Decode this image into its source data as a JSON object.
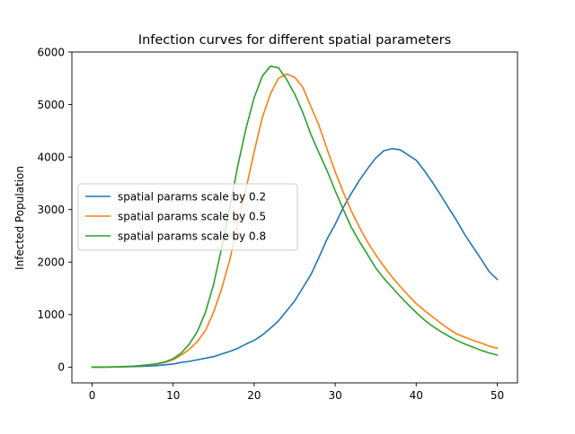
{
  "chart_data": {
    "type": "line",
    "title": "Infection curves for different spatial parameters",
    "xlabel": "",
    "ylabel": "Infected Population",
    "xlim": [
      -2.5,
      52.5
    ],
    "ylim": [
      -300,
      6000
    ],
    "xticks": [
      0,
      10,
      20,
      30,
      40,
      50
    ],
    "yticks": [
      0,
      1000,
      2000,
      3000,
      4000,
      5000,
      6000
    ],
    "grid": false,
    "legend_position": "center-left",
    "series": [
      {
        "name": "spatial params scale by 0.2",
        "color": "#1f77b4",
        "x": [
          0,
          1,
          2,
          3,
          4,
          5,
          6,
          7,
          8,
          9,
          10,
          11,
          12,
          13,
          14,
          15,
          16,
          17,
          18,
          19,
          20,
          21,
          22,
          23,
          24,
          25,
          26,
          27,
          28,
          29,
          30,
          31,
          32,
          33,
          34,
          35,
          36,
          37,
          38,
          39,
          40,
          41,
          42,
          43,
          44,
          45,
          46,
          47,
          48,
          49,
          50
        ],
        "y": [
          0,
          0,
          2,
          4,
          6,
          10,
          15,
          22,
          30,
          45,
          60,
          90,
          110,
          140,
          170,
          200,
          250,
          300,
          360,
          440,
          510,
          610,
          740,
          880,
          1070,
          1260,
          1510,
          1760,
          2090,
          2440,
          2720,
          3040,
          3310,
          3560,
          3780,
          3980,
          4120,
          4160,
          4140,
          4040,
          3940,
          3740,
          3520,
          3280,
          3030,
          2790,
          2520,
          2290,
          2060,
          1820,
          1670
        ]
      },
      {
        "name": "spatial params scale by 0.5",
        "color": "#ff7f0e",
        "x": [
          0,
          1,
          2,
          3,
          4,
          5,
          6,
          7,
          8,
          9,
          10,
          11,
          12,
          13,
          14,
          15,
          16,
          17,
          18,
          19,
          20,
          21,
          22,
          23,
          24,
          25,
          26,
          27,
          28,
          29,
          30,
          31,
          32,
          33,
          34,
          35,
          36,
          37,
          38,
          39,
          40,
          41,
          42,
          43,
          44,
          45,
          46,
          47,
          48,
          49,
          50
        ],
        "y": [
          0,
          0,
          2,
          5,
          10,
          18,
          28,
          42,
          60,
          90,
          140,
          230,
          340,
          490,
          700,
          1050,
          1500,
          2050,
          2750,
          3400,
          4100,
          4750,
          5200,
          5500,
          5580,
          5520,
          5330,
          4960,
          4600,
          4150,
          3720,
          3330,
          2970,
          2660,
          2380,
          2140,
          1920,
          1720,
          1540,
          1370,
          1210,
          1080,
          960,
          840,
          730,
          630,
          570,
          510,
          460,
          400,
          360
        ]
      },
      {
        "name": "spatial params scale by 0.8",
        "color": "#2ca02c",
        "x": [
          0,
          1,
          2,
          3,
          4,
          5,
          6,
          7,
          8,
          9,
          10,
          11,
          12,
          13,
          14,
          15,
          16,
          17,
          18,
          19,
          20,
          21,
          22,
          23,
          24,
          25,
          26,
          27,
          28,
          29,
          30,
          31,
          32,
          33,
          34,
          35,
          36,
          37,
          38,
          39,
          40,
          41,
          42,
          43,
          44,
          45,
          46,
          47,
          48,
          49,
          50
        ],
        "y": [
          0,
          0,
          2,
          5,
          10,
          18,
          30,
          45,
          65,
          100,
          160,
          270,
          440,
          680,
          1050,
          1580,
          2280,
          3050,
          3850,
          4550,
          5130,
          5540,
          5730,
          5700,
          5480,
          5200,
          4850,
          4430,
          4080,
          3740,
          3360,
          3000,
          2660,
          2390,
          2140,
          1890,
          1690,
          1520,
          1350,
          1190,
          1040,
          900,
          780,
          680,
          590,
          510,
          440,
          380,
          320,
          270,
          230
        ]
      }
    ]
  }
}
